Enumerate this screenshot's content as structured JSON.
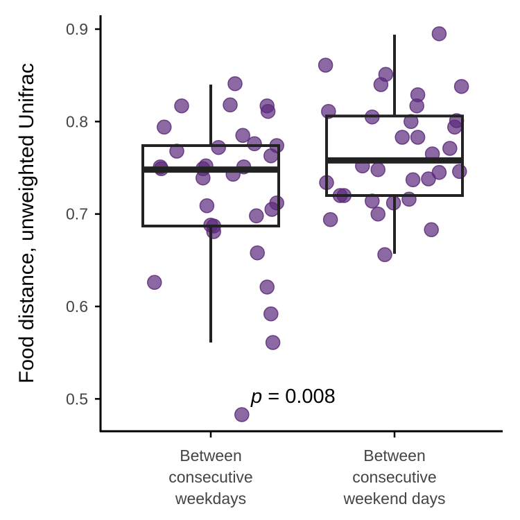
{
  "chart_data": {
    "type": "boxplot",
    "ylabel": "Food distance, unweighted Unifrac",
    "xlabel": "",
    "ylim": [
      0.465,
      0.915
    ],
    "y_ticks": [
      "0.5",
      "0.6",
      "0.7",
      "0.8",
      "0.9"
    ],
    "categories": [
      [
        "Between",
        "consecutive",
        "weekdays"
      ],
      [
        "Between",
        "consecutive",
        "weekend days"
      ]
    ],
    "annotation": {
      "italic": "p",
      "rest": " = 0.008"
    },
    "point_color": "#5b2a7a",
    "box_color": "#222222",
    "boxes": [
      {
        "min": 0.561,
        "q1": 0.687,
        "median": 0.748,
        "q3": 0.774,
        "max": 0.84
      },
      {
        "min": 0.657,
        "q1": 0.72,
        "median": 0.758,
        "q3": 0.806,
        "max": 0.894
      }
    ],
    "points": [
      [
        [
          -0.48,
          0.794
        ],
        [
          -0.52,
          0.751
        ],
        [
          -0.51,
          0.749
        ],
        [
          -0.35,
          0.768
        ],
        [
          -0.3,
          0.817
        ],
        [
          -0.08,
          0.749
        ],
        [
          -0.05,
          0.752
        ],
        [
          -0.08,
          0.739
        ],
        [
          -0.04,
          0.709
        ],
        [
          0.0,
          0.688
        ],
        [
          0.03,
          0.687
        ],
        [
          0.03,
          0.681
        ],
        [
          0.08,
          0.772
        ],
        [
          0.2,
          0.818
        ],
        [
          0.25,
          0.841
        ],
        [
          0.23,
          0.743
        ],
        [
          0.33,
          0.785
        ],
        [
          0.34,
          0.751
        ],
        [
          0.45,
          0.776
        ],
        [
          0.58,
          0.817
        ],
        [
          0.59,
          0.811
        ],
        [
          0.62,
          0.763
        ],
        [
          0.68,
          0.774
        ],
        [
          0.68,
          0.712
        ],
        [
          0.63,
          0.705
        ],
        [
          0.47,
          0.698
        ],
        [
          0.48,
          0.658
        ],
        [
          0.58,
          0.621
        ],
        [
          0.62,
          0.592
        ],
        [
          0.64,
          0.561
        ],
        [
          -0.58,
          0.626
        ],
        [
          0.32,
          0.483
        ]
      ],
      [
        [
          -0.71,
          0.861
        ],
        [
          -0.68,
          0.811
        ],
        [
          -0.7,
          0.734
        ],
        [
          -0.66,
          0.694
        ],
        [
          -0.56,
          0.72
        ],
        [
          -0.52,
          0.72
        ],
        [
          -0.33,
          0.752
        ],
        [
          -0.23,
          0.805
        ],
        [
          -0.23,
          0.714
        ],
        [
          -0.17,
          0.748
        ],
        [
          -0.17,
          0.7
        ],
        [
          -0.14,
          0.84
        ],
        [
          -0.09,
          0.851
        ],
        [
          -0.01,
          0.712
        ],
        [
          0.08,
          0.783
        ],
        [
          0.15,
          0.716
        ],
        [
          0.17,
          0.8
        ],
        [
          0.24,
          0.829
        ],
        [
          0.23,
          0.817
        ],
        [
          0.24,
          0.783
        ],
        [
          0.19,
          0.737
        ],
        [
          0.35,
          0.738
        ],
        [
          0.38,
          0.683
        ],
        [
          0.39,
          0.765
        ],
        [
          0.46,
          0.745
        ],
        [
          0.57,
          0.771
        ],
        [
          0.62,
          0.794
        ],
        [
          0.64,
          0.801
        ],
        [
          0.67,
          0.746
        ],
        [
          0.69,
          0.838
        ],
        [
          -0.1,
          0.656
        ],
        [
          0.46,
          0.895
        ]
      ]
    ]
  }
}
